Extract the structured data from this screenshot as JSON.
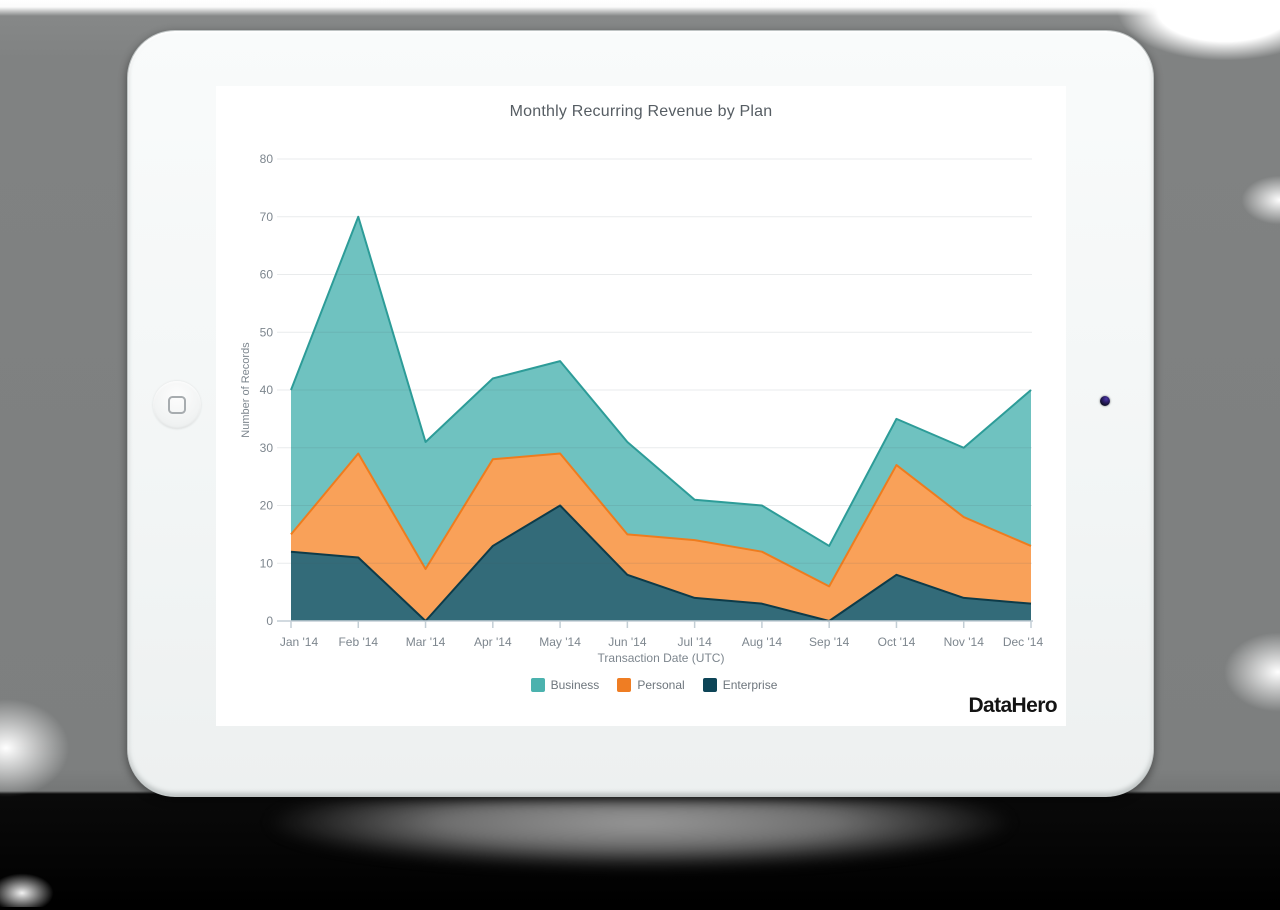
{
  "chart_data": {
    "type": "area",
    "title": "Monthly Recurring Revenue by Plan",
    "xlabel": "Transaction Date (UTC)",
    "ylabel": "Number of Records",
    "categories": [
      "Jan '14",
      "Feb '14",
      "Mar '14",
      "Apr '14",
      "May '14",
      "Jun '14",
      "Jul '14",
      "Aug '14",
      "Sep '14",
      "Oct '14",
      "Nov '14",
      "Dec '14"
    ],
    "series": [
      {
        "name": "Business",
        "values": [
          40,
          70,
          31,
          42,
          45,
          31,
          21,
          20,
          13,
          35,
          30,
          40
        ],
        "fill": "#6fc2c0",
        "stroke": "#2d9c98",
        "swatch": "#4bb2ae"
      },
      {
        "name": "Personal",
        "values": [
          15,
          29,
          9,
          28,
          29,
          15,
          14,
          12,
          6,
          27,
          18,
          13
        ],
        "fill": "#f9a159",
        "stroke": "#ee7c1e",
        "swatch": "#ef7d23"
      },
      {
        "name": "Enterprise",
        "values": [
          12,
          11,
          0,
          13,
          20,
          8,
          4,
          3,
          0,
          8,
          4,
          3
        ],
        "fill": "#336b79",
        "stroke": "#0d3b49",
        "swatch": "#0d4557"
      }
    ],
    "yticks": [
      0,
      10,
      20,
      30,
      40,
      50,
      60,
      70,
      80
    ],
    "ylim": [
      0,
      80
    ],
    "grid": true,
    "legend_position": "bottom"
  },
  "branding": {
    "logo": "DataHero"
  }
}
